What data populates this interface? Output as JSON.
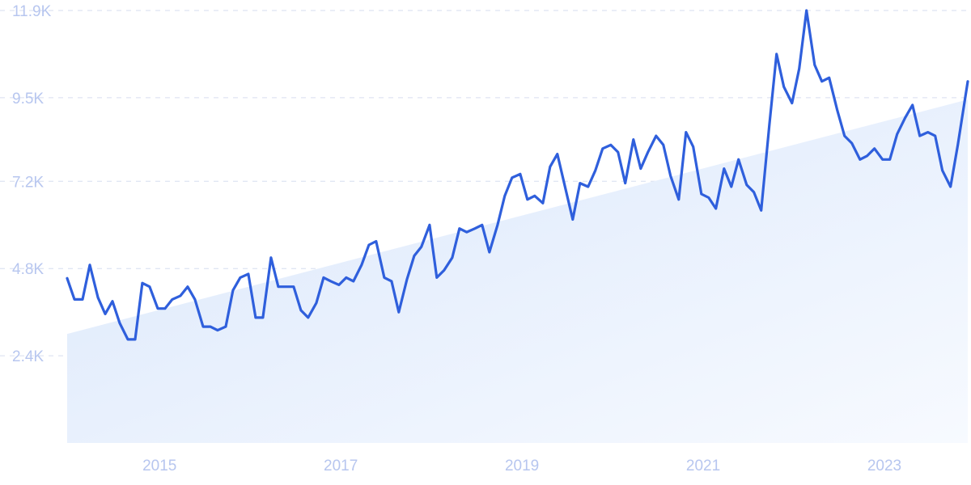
{
  "chart_data": {
    "type": "line",
    "title": "",
    "xlabel": "",
    "ylabel": "",
    "y_ticks": [
      "2.4K",
      "4.8K",
      "7.2K",
      "9.5K",
      "11.9K"
    ],
    "y_tick_values": [
      2400,
      4800,
      7200,
      9500,
      11900
    ],
    "ylim": [
      0,
      11900
    ],
    "x_ticks": [
      "2015",
      "2017",
      "2019",
      "2021",
      "2023"
    ],
    "x_tick_values": [
      2015.0,
      2017.0,
      2019.0,
      2021.0,
      2023.0
    ],
    "xlim": [
      2013.98,
      2023.92
    ],
    "grid": true,
    "trend_line": {
      "x": [
        2013.98,
        2023.92
      ],
      "y": [
        3000,
        9450
      ]
    },
    "series": [
      {
        "color": "#2f5fdc",
        "x": [
          2013.98,
          2014.06,
          2014.15,
          2014.23,
          2014.32,
          2014.4,
          2014.48,
          2014.56,
          2014.65,
          2014.73,
          2014.81,
          2014.89,
          2014.98,
          2015.06,
          2015.14,
          2015.23,
          2015.31,
          2015.39,
          2015.48,
          2015.56,
          2015.64,
          2015.73,
          2015.81,
          2015.89,
          2015.98,
          2016.06,
          2016.14,
          2016.23,
          2016.31,
          2016.39,
          2016.48,
          2016.56,
          2016.64,
          2016.73,
          2016.81,
          2016.89,
          2016.98,
          2017.06,
          2017.14,
          2017.23,
          2017.31,
          2017.39,
          2017.48,
          2017.56,
          2017.64,
          2017.73,
          2017.81,
          2017.89,
          2017.98,
          2018.06,
          2018.14,
          2018.23,
          2018.31,
          2018.39,
          2018.48,
          2018.56,
          2018.64,
          2018.73,
          2018.81,
          2018.89,
          2018.98,
          2019.06,
          2019.14,
          2019.23,
          2019.31,
          2019.39,
          2019.48,
          2019.56,
          2019.64,
          2019.73,
          2019.81,
          2019.89,
          2019.98,
          2020.06,
          2020.14,
          2020.23,
          2020.31,
          2020.39,
          2020.48,
          2020.56,
          2020.64,
          2020.73,
          2020.81,
          2020.89,
          2020.98,
          2021.06,
          2021.14,
          2021.23,
          2021.31,
          2021.39,
          2021.48,
          2021.56,
          2021.64,
          2021.73,
          2021.81,
          2021.89,
          2021.98,
          2022.06,
          2022.14,
          2022.23,
          2022.31,
          2022.39,
          2022.48,
          2022.56,
          2022.64,
          2022.73,
          2022.81,
          2022.89,
          2022.98,
          2023.06,
          2023.14,
          2023.23,
          2023.31,
          2023.39,
          2023.48,
          2023.56,
          2023.64,
          2023.73,
          2023.81,
          2023.92
        ],
        "y": [
          4530,
          3950,
          3950,
          4900,
          4000,
          3550,
          3900,
          3300,
          2850,
          2850,
          4400,
          4300,
          3700,
          3700,
          3950,
          4050,
          4300,
          3950,
          3200,
          3200,
          3100,
          3200,
          4200,
          4550,
          4650,
          3450,
          3450,
          5100,
          4300,
          4300,
          4300,
          3650,
          3450,
          3850,
          4550,
          4450,
          4350,
          4550,
          4450,
          4900,
          5450,
          5550,
          4550,
          4450,
          3600,
          4500,
          5150,
          5400,
          6000,
          4550,
          4750,
          5100,
          5900,
          5800,
          5900,
          6000,
          5250,
          6000,
          6800,
          7300,
          7400,
          6700,
          6800,
          6600,
          7600,
          7950,
          7000,
          6150,
          7150,
          7050,
          7500,
          8100,
          8200,
          8000,
          7150,
          8350,
          7550,
          8000,
          8450,
          8200,
          7350,
          6700,
          8550,
          8150,
          6850,
          6750,
          6450,
          7550,
          7050,
          7800,
          7100,
          6900,
          6400,
          8750,
          10700,
          9800,
          9350,
          10300,
          11900,
          10400,
          9950,
          10050,
          9150,
          8450,
          8250,
          7800,
          7900,
          8100,
          7800,
          7800,
          8500,
          8950,
          9300,
          8450,
          8550,
          8450,
          7500,
          7050,
          8200,
          9950
        ]
      }
    ]
  }
}
